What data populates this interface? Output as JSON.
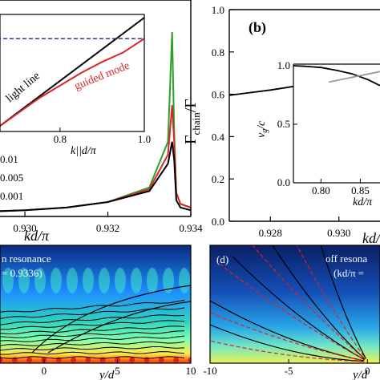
{
  "chart_data": [
    {
      "id": "a",
      "type": "line",
      "xlabel": "kd/π",
      "x_ticks": [
        "0.930",
        "0.932",
        "0.934"
      ],
      "xlim": [
        0.9294,
        0.934
      ],
      "legend": [
        "0.01",
        "0.005",
        "0.001"
      ],
      "legend_colors": [
        "#2ca02c",
        "#d62728",
        "#000000"
      ],
      "series": [
        {
          "color": "#2ca02c",
          "x": [
            0.9294,
            0.93,
            0.931,
            0.932,
            0.933,
            0.93345,
            0.93355,
            0.9336,
            0.93365,
            0.93375,
            0.934
          ],
          "y": [
            0.02,
            0.025,
            0.04,
            0.07,
            0.15,
            0.4,
            1.0,
            0.45,
            0.12,
            0.06,
            0.04
          ]
        },
        {
          "color": "#d62728",
          "x": [
            0.9294,
            0.93,
            0.931,
            0.932,
            0.933,
            0.93345,
            0.93355,
            0.9336,
            0.93365,
            0.93375,
            0.934
          ],
          "y": [
            0.02,
            0.025,
            0.04,
            0.07,
            0.14,
            0.33,
            0.6,
            0.4,
            0.12,
            0.06,
            0.04
          ]
        },
        {
          "color": "#000000",
          "x": [
            0.9294,
            0.93,
            0.931,
            0.932,
            0.933,
            0.93345,
            0.93355,
            0.9336,
            0.93365,
            0.93375,
            0.934
          ],
          "y": [
            0.02,
            0.025,
            0.04,
            0.07,
            0.13,
            0.28,
            0.4,
            0.3,
            0.08,
            0.04,
            0.025
          ]
        }
      ],
      "inset": {
        "xlabel": "k||d/π",
        "x_ticks": [
          "0.8",
          "1.0"
        ],
        "xlim": [
          0.65,
          1.0
        ],
        "annotations": [
          "light line",
          "guided mode"
        ],
        "series": [
          {
            "name": "light line",
            "color": "#000000",
            "x": [
              0.65,
              1.0
            ],
            "y": [
              0.65,
              1.0
            ]
          },
          {
            "name": "guided mode",
            "color": "#d62728",
            "x": [
              0.65,
              0.75,
              0.85,
              0.9,
              0.95,
              1.0
            ],
            "y": [
              0.65,
              0.745,
              0.825,
              0.86,
              0.89,
              0.9336
            ]
          },
          {
            "name": "resonance",
            "color": "#1f1f8c",
            "dashed": true,
            "x": [
              0.65,
              1.0
            ],
            "y": [
              0.9336,
              0.9336
            ]
          }
        ],
        "ylim": [
          0.65,
          1.0
        ]
      }
    },
    {
      "id": "b",
      "panel_label": "(b)",
      "type": "line",
      "xlabel": "kd/π",
      "ylabel": "Γ_chain/Γ",
      "x_ticks": [
        "0.928",
        "0.930"
      ],
      "y_ticks": [
        "0.0",
        "0.2",
        "0.4",
        "0.6",
        "0.8",
        "1.0"
      ],
      "xlim": [
        0.9268,
        0.9312
      ],
      "ylim": [
        0.0,
        1.0
      ],
      "series": [
        {
          "color": "#000000",
          "x": [
            0.9268,
            0.928,
            0.929,
            0.93,
            0.9312
          ],
          "y": [
            0.595,
            0.62,
            0.645,
            0.67,
            0.7
          ]
        }
      ],
      "inset": {
        "xlabel": "kd/π",
        "ylabel": "v_g/c",
        "x_ticks": [
          "0.80",
          "0.85"
        ],
        "y_ticks": [
          "0.0",
          "0.5",
          "1.0"
        ],
        "xlim": [
          0.765,
          0.875
        ],
        "ylim": [
          0.0,
          1.0
        ],
        "series": [
          {
            "color": "#000000",
            "x": [
              0.765,
              0.78,
              0.8,
              0.82,
              0.84,
              0.86,
              0.875
            ],
            "y": [
              1.0,
              0.995,
              0.985,
              0.96,
              0.93,
              0.88,
              0.83
            ]
          },
          {
            "color": "#9a9a9a",
            "x": [
              0.81,
              0.875
            ],
            "y": [
              0.86,
              0.95
            ]
          }
        ]
      }
    },
    {
      "id": "c",
      "type": "heatmap",
      "text": [
        "n resonance",
        "= 0.9336)"
      ],
      "xlabel": "y/d",
      "x_ticks": [
        "0",
        "5",
        "10"
      ],
      "xlim": [
        -3,
        10
      ]
    },
    {
      "id": "d",
      "panel_label": "(d)",
      "type": "heatmap",
      "text": [
        "off resona",
        "(kd/π ="
      ],
      "xlabel": "y/d",
      "x_ticks": [
        "-10",
        "-5",
        "0"
      ],
      "xlim": [
        -10,
        0.8
      ]
    }
  ],
  "colors": {
    "field_dark": "#0a1f66",
    "field_mid": "#1e90ff",
    "field_bright": "#2fd4c0",
    "field_hot": "#ffe94a",
    "source": "#e02020"
  }
}
